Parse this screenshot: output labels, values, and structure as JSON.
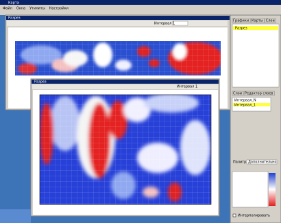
{
  "app": {
    "title": "Карта",
    "menu": [
      "Файл",
      "Окна",
      "Утилиты",
      "Настройки"
    ]
  },
  "window_top": {
    "title": "Разрез",
    "field": "Интервал 1"
  },
  "window_main": {
    "title": "Разрез",
    "field": "Интервал 1"
  },
  "side_panel": {
    "tabs": [
      "Графики",
      "Карты",
      "Слои"
    ],
    "items": [
      "Разрез"
    ],
    "lower_tabs": [
      "Слои",
      "Редактор слоев"
    ],
    "layers": [
      "Интервал_N",
      "Интервал_1"
    ],
    "palette_label": "Палитра",
    "palette_value": "Дополнительно",
    "check": "Интерполировать"
  }
}
